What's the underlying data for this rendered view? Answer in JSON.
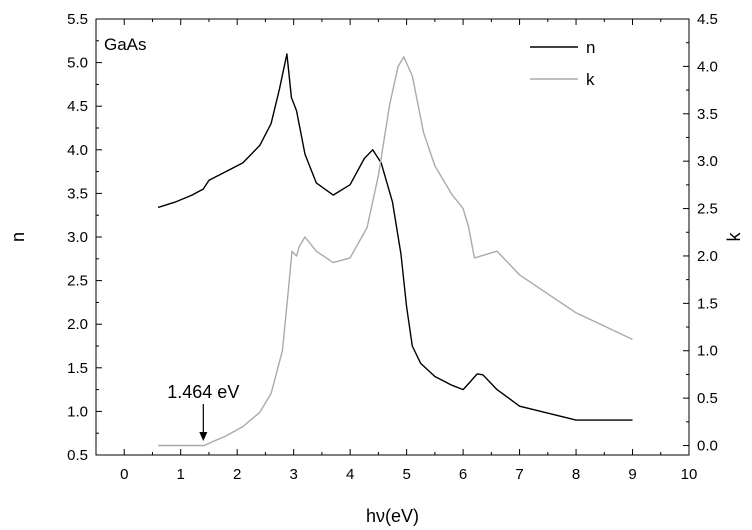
{
  "chart_data": {
    "type": "line",
    "title": "",
    "sample_label": "GaAs",
    "xlabel": "hν(eV)",
    "ylabel_left": "n",
    "ylabel_right": "k",
    "xlim": [
      -0.5,
      10
    ],
    "ylim_left": [
      0.5,
      5.5
    ],
    "ylim_right": [
      -0.1,
      4.5
    ],
    "x_ticks": [
      "0",
      "1",
      "2",
      "3",
      "4",
      "5",
      "6",
      "7",
      "8",
      "9",
      "10"
    ],
    "y_left_ticks": [
      "0.5",
      "1.0",
      "1.5",
      "2.0",
      "2.5",
      "3.0",
      "3.5",
      "4.0",
      "4.5",
      "5.0",
      "5.5"
    ],
    "y_right_ticks": [
      "0.0",
      "0.5",
      "1.0",
      "1.5",
      "2.0",
      "2.5",
      "3.0",
      "3.5",
      "4.0",
      "4.5"
    ],
    "legend_position": "top-right",
    "grid": false,
    "annotation": {
      "text": "1.464 eV",
      "x": 1.4
    },
    "series": [
      {
        "name": "n",
        "axis": "left",
        "color": "#000000",
        "points": [
          [
            0.6,
            3.34
          ],
          [
            0.9,
            3.4
          ],
          [
            1.2,
            3.48
          ],
          [
            1.4,
            3.55
          ],
          [
            1.5,
            3.65
          ],
          [
            1.8,
            3.75
          ],
          [
            2.1,
            3.85
          ],
          [
            2.4,
            4.05
          ],
          [
            2.6,
            4.3
          ],
          [
            2.75,
            4.7
          ],
          [
            2.88,
            5.1
          ],
          [
            2.96,
            4.6
          ],
          [
            3.05,
            4.45
          ],
          [
            3.2,
            3.95
          ],
          [
            3.4,
            3.62
          ],
          [
            3.7,
            3.48
          ],
          [
            4.0,
            3.6
          ],
          [
            4.25,
            3.9
          ],
          [
            4.4,
            4.0
          ],
          [
            4.55,
            3.85
          ],
          [
            4.75,
            3.4
          ],
          [
            4.9,
            2.8
          ],
          [
            5.0,
            2.2
          ],
          [
            5.1,
            1.75
          ],
          [
            5.25,
            1.55
          ],
          [
            5.5,
            1.4
          ],
          [
            5.8,
            1.3
          ],
          [
            6.0,
            1.25
          ],
          [
            6.1,
            1.32
          ],
          [
            6.25,
            1.43
          ],
          [
            6.35,
            1.42
          ],
          [
            6.6,
            1.25
          ],
          [
            7.0,
            1.06
          ],
          [
            8.0,
            0.9
          ],
          [
            9.0,
            0.9
          ]
        ]
      },
      {
        "name": "k",
        "axis": "right",
        "color": "#aaaaaa",
        "points": [
          [
            0.6,
            0.0
          ],
          [
            1.42,
            0.0
          ],
          [
            1.6,
            0.05
          ],
          [
            1.8,
            0.1
          ],
          [
            2.1,
            0.2
          ],
          [
            2.4,
            0.35
          ],
          [
            2.6,
            0.55
          ],
          [
            2.8,
            1.0
          ],
          [
            2.9,
            1.6
          ],
          [
            2.97,
            2.05
          ],
          [
            3.05,
            2.0
          ],
          [
            3.1,
            2.1
          ],
          [
            3.2,
            2.2
          ],
          [
            3.4,
            2.05
          ],
          [
            3.7,
            1.93
          ],
          [
            4.0,
            1.98
          ],
          [
            4.3,
            2.3
          ],
          [
            4.5,
            2.85
          ],
          [
            4.7,
            3.6
          ],
          [
            4.85,
            4.0
          ],
          [
            4.95,
            4.1
          ],
          [
            5.1,
            3.9
          ],
          [
            5.3,
            3.3
          ],
          [
            5.5,
            2.95
          ],
          [
            5.8,
            2.65
          ],
          [
            6.0,
            2.5
          ],
          [
            6.1,
            2.3
          ],
          [
            6.2,
            1.98
          ],
          [
            6.6,
            2.05
          ],
          [
            7.0,
            1.8
          ],
          [
            8.0,
            1.4
          ],
          [
            9.0,
            1.12
          ]
        ]
      }
    ]
  }
}
